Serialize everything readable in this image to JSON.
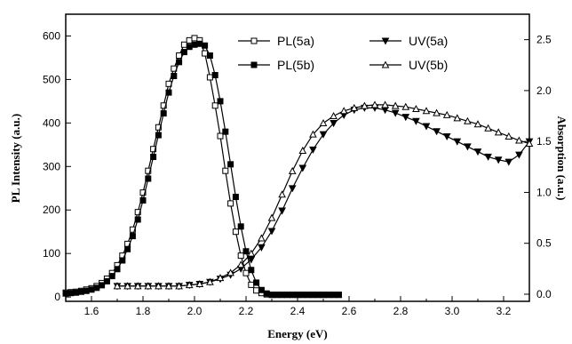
{
  "chart_data": {
    "type": "line",
    "xlabel": "Energy (eV)",
    "ylabel_left": "PL Intensity (a.u.)",
    "ylabel_right": "Absorption (a.u.)",
    "xlim": [
      1.5,
      3.3
    ],
    "ylim_left": [
      -10,
      650
    ],
    "ylim_right": [
      -0.07,
      2.75
    ],
    "x_ticks": [
      "1.6",
      "1.8",
      "2.0",
      "2.2",
      "2.4",
      "2.6",
      "2.8",
      "3.0",
      "3.2"
    ],
    "y_left_ticks": [
      "0",
      "100",
      "200",
      "300",
      "400",
      "500",
      "600"
    ],
    "y_right_ticks": [
      "0.0",
      "0.5",
      "1.0",
      "1.5",
      "2.0",
      "2.5"
    ],
    "legend_position": "top-center",
    "colors": {
      "axis": "#000000",
      "series": "#000000"
    },
    "series": [
      {
        "name": "PL(5a)",
        "axis": "left",
        "marker": "open-square",
        "x": [
          1.5,
          1.52,
          1.54,
          1.56,
          1.58,
          1.6,
          1.62,
          1.64,
          1.66,
          1.68,
          1.7,
          1.72,
          1.74,
          1.76,
          1.78,
          1.8,
          1.82,
          1.84,
          1.86,
          1.88,
          1.9,
          1.92,
          1.94,
          1.96,
          1.98,
          2.0,
          2.02,
          2.04,
          2.06,
          2.08,
          2.1,
          2.12,
          2.14,
          2.16,
          2.18,
          2.2,
          2.22,
          2.24,
          2.26,
          2.28,
          2.3,
          2.32,
          2.34,
          2.36,
          2.38,
          2.4,
          2.42,
          2.44,
          2.46,
          2.48,
          2.5,
          2.52,
          2.54,
          2.56
        ],
        "y": [
          10,
          11,
          12,
          14,
          17,
          20,
          25,
          32,
          42,
          55,
          73,
          95,
          122,
          155,
          195,
          240,
          290,
          340,
          390,
          440,
          490,
          525,
          555,
          580,
          590,
          595,
          590,
          560,
          505,
          440,
          370,
          290,
          215,
          150,
          95,
          55,
          28,
          15,
          9,
          6,
          5,
          5,
          5,
          5,
          5,
          5,
          5,
          5,
          5,
          5,
          5,
          5,
          5,
          5
        ]
      },
      {
        "name": "PL(5b)",
        "axis": "left",
        "marker": "filled-square",
        "x": [
          1.5,
          1.52,
          1.54,
          1.56,
          1.58,
          1.6,
          1.62,
          1.64,
          1.66,
          1.68,
          1.7,
          1.72,
          1.74,
          1.76,
          1.78,
          1.8,
          1.82,
          1.84,
          1.86,
          1.88,
          1.9,
          1.92,
          1.94,
          1.96,
          1.98,
          2.0,
          2.02,
          2.04,
          2.06,
          2.08,
          2.1,
          2.12,
          2.14,
          2.16,
          2.18,
          2.2,
          2.22,
          2.24,
          2.26,
          2.28,
          2.3,
          2.32,
          2.34,
          2.36,
          2.38,
          2.4,
          2.42,
          2.44,
          2.46,
          2.48,
          2.5,
          2.52,
          2.54,
          2.56
        ],
        "y": [
          8,
          9,
          10,
          12,
          14,
          17,
          21,
          27,
          36,
          48,
          64,
          84,
          110,
          140,
          178,
          222,
          272,
          322,
          372,
          422,
          470,
          508,
          540,
          563,
          575,
          580,
          582,
          578,
          555,
          510,
          450,
          380,
          305,
          230,
          162,
          105,
          62,
          33,
          16,
          8,
          5,
          5,
          5,
          5,
          5,
          5,
          5,
          5,
          5,
          5,
          5,
          5,
          5,
          5
        ]
      },
      {
        "name": "UV(5a)",
        "axis": "right",
        "marker": "filled-triangle-down",
        "x": [
          1.7,
          1.74,
          1.78,
          1.82,
          1.86,
          1.9,
          1.94,
          1.98,
          2.02,
          2.06,
          2.1,
          2.14,
          2.18,
          2.22,
          2.26,
          2.3,
          2.34,
          2.38,
          2.42,
          2.46,
          2.5,
          2.54,
          2.58,
          2.62,
          2.66,
          2.7,
          2.74,
          2.78,
          2.82,
          2.86,
          2.9,
          2.94,
          2.98,
          3.02,
          3.06,
          3.1,
          3.14,
          3.18,
          3.22,
          3.26,
          3.3
        ],
        "y": [
          0.08,
          0.08,
          0.08,
          0.08,
          0.08,
          0.08,
          0.08,
          0.09,
          0.1,
          0.12,
          0.15,
          0.19,
          0.25,
          0.34,
          0.46,
          0.62,
          0.82,
          1.04,
          1.24,
          1.42,
          1.57,
          1.68,
          1.76,
          1.81,
          1.83,
          1.83,
          1.81,
          1.78,
          1.74,
          1.7,
          1.65,
          1.6,
          1.55,
          1.5,
          1.45,
          1.4,
          1.35,
          1.32,
          1.3,
          1.37,
          1.5
        ]
      },
      {
        "name": "UV(5b)",
        "axis": "right",
        "marker": "open-triangle-up",
        "x": [
          1.7,
          1.74,
          1.78,
          1.82,
          1.86,
          1.9,
          1.94,
          1.98,
          2.02,
          2.06,
          2.1,
          2.14,
          2.18,
          2.22,
          2.26,
          2.3,
          2.34,
          2.38,
          2.42,
          2.46,
          2.5,
          2.54,
          2.58,
          2.62,
          2.66,
          2.7,
          2.74,
          2.78,
          2.82,
          2.86,
          2.9,
          2.94,
          2.98,
          3.02,
          3.06,
          3.1,
          3.14,
          3.18,
          3.22,
          3.26,
          3.3
        ],
        "y": [
          0.08,
          0.08,
          0.08,
          0.08,
          0.08,
          0.08,
          0.08,
          0.09,
          0.1,
          0.12,
          0.16,
          0.21,
          0.29,
          0.4,
          0.55,
          0.75,
          0.98,
          1.21,
          1.41,
          1.57,
          1.68,
          1.75,
          1.8,
          1.83,
          1.85,
          1.86,
          1.86,
          1.85,
          1.84,
          1.82,
          1.8,
          1.78,
          1.76,
          1.73,
          1.7,
          1.67,
          1.63,
          1.59,
          1.55,
          1.51,
          1.48
        ]
      }
    ]
  }
}
